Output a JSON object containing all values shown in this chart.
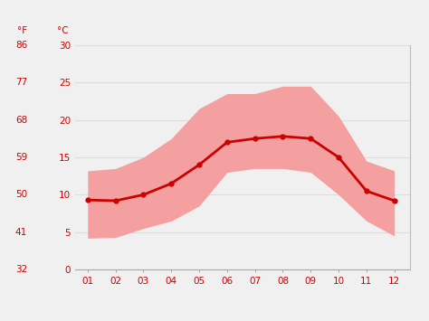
{
  "months": [
    1,
    2,
    3,
    4,
    5,
    6,
    7,
    8,
    9,
    10,
    11,
    12
  ],
  "mean_temp_c": [
    9.3,
    9.2,
    10.0,
    11.5,
    14.0,
    17.0,
    17.5,
    17.8,
    17.5,
    15.0,
    10.5,
    9.2
  ],
  "high_temp_c": [
    13.2,
    13.5,
    15.0,
    17.5,
    21.5,
    23.5,
    23.5,
    24.5,
    24.5,
    20.5,
    14.5,
    13.2
  ],
  "low_temp_c": [
    4.2,
    4.3,
    5.5,
    6.5,
    8.5,
    13.0,
    13.5,
    13.5,
    13.0,
    10.0,
    6.5,
    4.5
  ],
  "yticks_c": [
    0,
    5,
    10,
    15,
    20,
    25,
    30
  ],
  "yticks_f": [
    32,
    41,
    50,
    59,
    68,
    77,
    86
  ],
  "xlim": [
    0.55,
    12.55
  ],
  "ylim": [
    0,
    30
  ],
  "band_color": "#f5a0a0",
  "line_color": "#cc0000",
  "bg_color": "#f0f0f0",
  "grid_color": "#dddddd",
  "label_color": "#cc0000",
  "tick_label_fontsize": 7.5,
  "left_label_f": "°F",
  "left_label_c": "°C"
}
